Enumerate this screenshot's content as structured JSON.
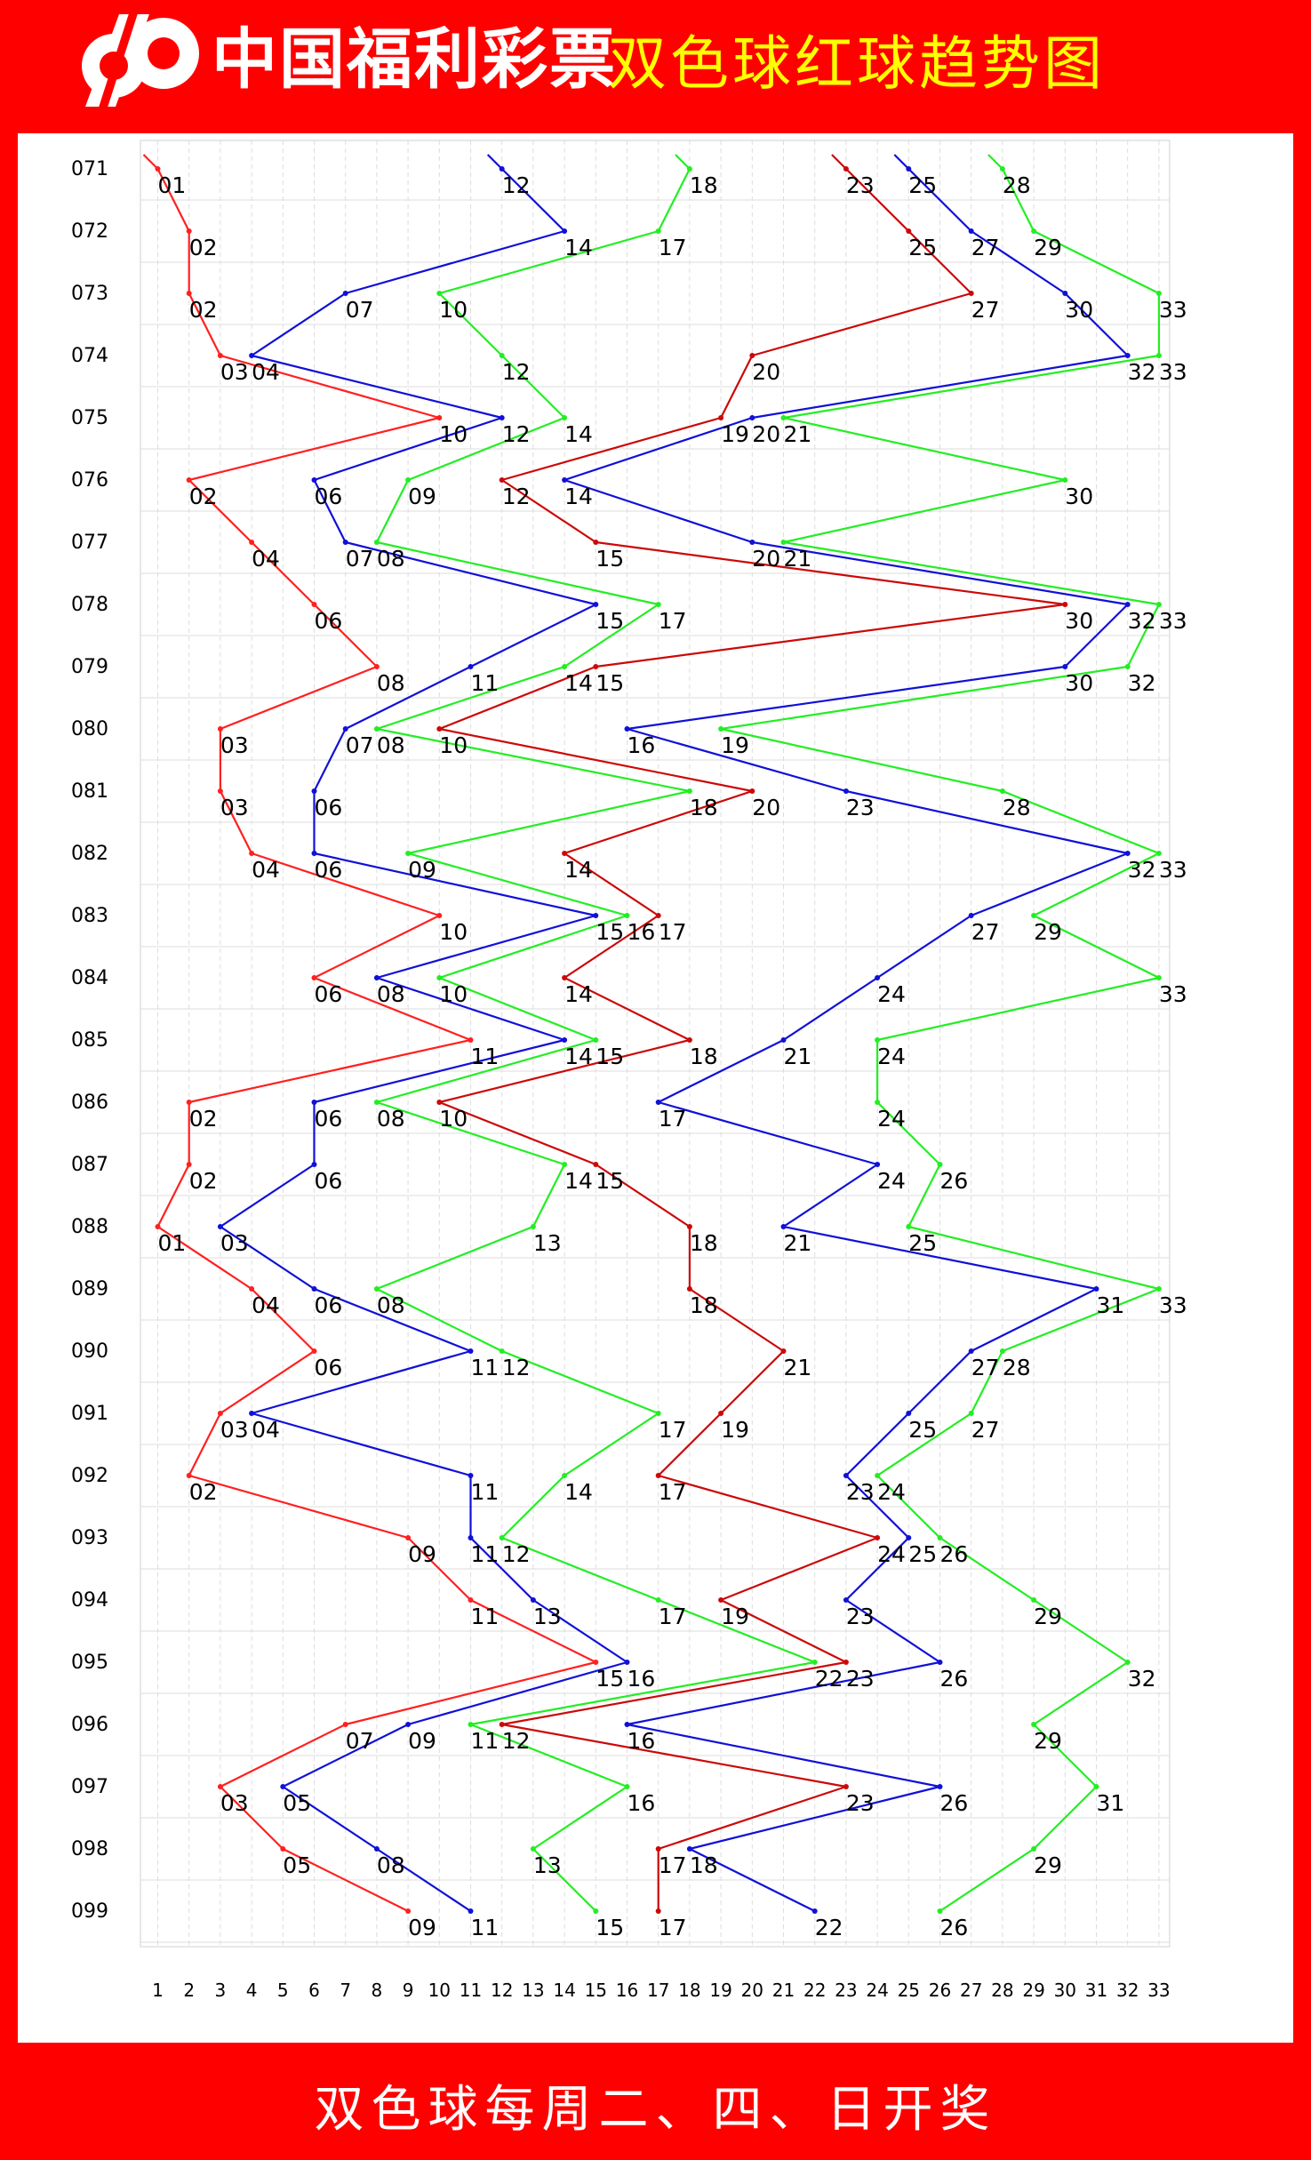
{
  "header": {
    "brand_name": "中国福利彩票",
    "chart_title": "双色球红球趋势图",
    "logo": "cwl-logo-icon",
    "background_color": "#ff0000",
    "title_color": "#ffff00"
  },
  "footer": {
    "text": "双色球每周二、四、日开奖"
  },
  "chart_data": {
    "type": "line",
    "x_ticks": [
      "1",
      "2",
      "3",
      "4",
      "5",
      "6",
      "7",
      "8",
      "9",
      "10",
      "11",
      "12",
      "13",
      "14",
      "15",
      "16",
      "17",
      "18",
      "19",
      "20",
      "21",
      "22",
      "23",
      "24",
      "25",
      "26",
      "27",
      "28",
      "29",
      "30",
      "31",
      "32",
      "33"
    ],
    "xlim": [
      1,
      33
    ],
    "grid": true,
    "issues": [
      "071",
      "072",
      "073",
      "074",
      "075",
      "076",
      "077",
      "078",
      "079",
      "080",
      "081",
      "082",
      "083",
      "084",
      "085",
      "086",
      "087",
      "088",
      "089",
      "090",
      "091",
      "092",
      "093",
      "094",
      "095",
      "096",
      "097",
      "098",
      "099"
    ],
    "draws": [
      [
        1,
        12,
        18,
        23,
        25,
        28
      ],
      [
        2,
        14,
        17,
        25,
        27,
        29
      ],
      [
        2,
        7,
        10,
        27,
        30,
        33
      ],
      [
        3,
        4,
        12,
        20,
        32,
        33
      ],
      [
        10,
        12,
        14,
        19,
        20,
        21
      ],
      [
        2,
        6,
        9,
        12,
        14,
        30
      ],
      [
        4,
        7,
        8,
        15,
        20,
        21
      ],
      [
        6,
        15,
        17,
        30,
        32,
        33
      ],
      [
        8,
        11,
        14,
        15,
        30,
        32
      ],
      [
        3,
        7,
        8,
        10,
        16,
        19
      ],
      [
        3,
        6,
        18,
        20,
        23,
        28
      ],
      [
        4,
        6,
        9,
        14,
        32,
        33
      ],
      [
        10,
        15,
        16,
        17,
        27,
        29
      ],
      [
        6,
        8,
        10,
        14,
        24,
        33
      ],
      [
        11,
        14,
        15,
        18,
        21,
        24
      ],
      [
        2,
        6,
        8,
        10,
        17,
        24
      ],
      [
        2,
        6,
        14,
        15,
        24,
        26
      ],
      [
        1,
        3,
        13,
        18,
        21,
        25
      ],
      [
        4,
        6,
        8,
        18,
        31,
        33
      ],
      [
        6,
        11,
        12,
        21,
        27,
        28
      ],
      [
        3,
        4,
        17,
        19,
        25,
        27
      ],
      [
        2,
        11,
        14,
        17,
        23,
        24
      ],
      [
        9,
        11,
        12,
        24,
        25,
        26
      ],
      [
        11,
        13,
        17,
        19,
        23,
        29
      ],
      [
        15,
        16,
        22,
        23,
        26,
        32
      ],
      [
        7,
        9,
        11,
        12,
        16,
        29
      ],
      [
        3,
        5,
        16,
        23,
        26,
        31
      ],
      [
        5,
        8,
        13,
        17,
        18,
        29
      ],
      [
        9,
        11,
        15,
        17,
        22,
        26
      ]
    ],
    "series": [
      {
        "color": "#ff2020",
        "position": 1
      },
      {
        "color": "#1010d8",
        "position": 2
      },
      {
        "color": "#22ee22",
        "position": 3
      },
      {
        "color": "#cc0808",
        "position": 4
      },
      {
        "color": "#1010d8",
        "position": 5
      },
      {
        "color": "#22ee22",
        "position": 6
      }
    ]
  }
}
